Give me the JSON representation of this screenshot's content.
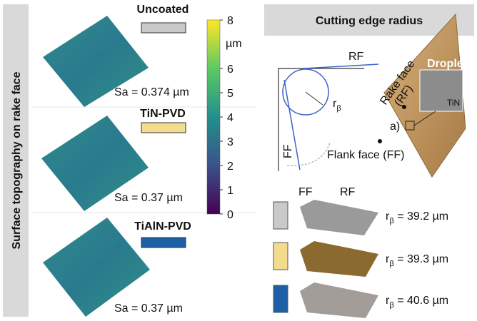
{
  "left_panel": {
    "title": "Surface topography on rake face",
    "samples": [
      {
        "name": "Uncoated",
        "color": "#c9c9c9",
        "sa": "Sa = 0.374 µm"
      },
      {
        "name": "TiN-PVD",
        "color": "#f3dc8d",
        "sa": "Sa = 0.37 µm"
      },
      {
        "name": "TiAlN-PVD",
        "color": "#1f5fa6",
        "sa": "Sa = 0.37 µm"
      }
    ]
  },
  "colorbar": {
    "lim": [
      0,
      8
    ],
    "ticks": [
      0,
      1,
      2,
      3,
      4,
      5,
      6,
      8
    ],
    "unit": "µm"
  },
  "right_panel": {
    "title": "Cutting edge radius",
    "schematic": {
      "rf": "RF",
      "ff": "FF",
      "radius": {
        "symbol": "r",
        "subscript": "β"
      },
      "droplets": "Droplets",
      "tin": "TiN",
      "rake_face": "Rake face",
      "rake_face_abbr": "(RF)",
      "label_a": "a)",
      "flank_face": "Flank face (FF)"
    },
    "profile_labels": {
      "ff": "FF",
      "rf": "RF"
    },
    "radii": [
      {
        "symbol": "r",
        "subscript": "β",
        "text": " = 39.2 µm"
      },
      {
        "symbol": "r",
        "subscript": "β",
        "text": " = 39.3 µm"
      },
      {
        "symbol": "r",
        "subscript": "β",
        "text": " = 40.6 µm"
      }
    ]
  }
}
